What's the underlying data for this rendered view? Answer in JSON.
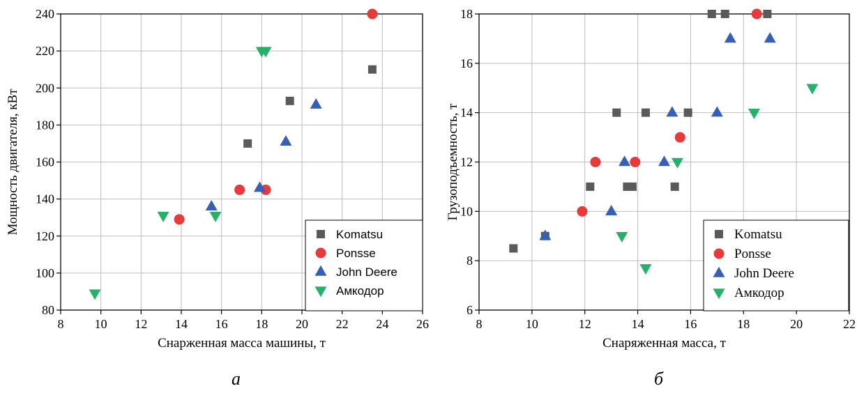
{
  "colors": {
    "komatsu": "#5a5a5a",
    "ponsse": "#e8393b",
    "john_deere": "#3560b5",
    "amkodor": "#27b06a",
    "grid": "#bdbdbd"
  },
  "panel_labels": [
    "а",
    "б"
  ],
  "chart_data": [
    {
      "type": "scatter",
      "xlabel": "Снарженная масса машины, т",
      "ylabel": "Мощность двигателя, кВт",
      "xlim": [
        8,
        26
      ],
      "ylim": [
        80,
        240
      ],
      "xticks": [
        8,
        10,
        12,
        14,
        16,
        18,
        20,
        22,
        24,
        26
      ],
      "yticks": [
        80,
        100,
        120,
        140,
        160,
        180,
        200,
        220,
        240
      ],
      "grid": true,
      "legend_position": "bottom-right",
      "series": [
        {
          "name": "Komatsu",
          "marker": "square",
          "color": "#5a5a5a",
          "points": [
            [
              17.3,
              170
            ],
            [
              19.4,
              193
            ],
            [
              23.5,
              210
            ]
          ]
        },
        {
          "name": "Ponsse",
          "marker": "circle",
          "color": "#e8393b",
          "points": [
            [
              13.9,
              129
            ],
            [
              16.9,
              145
            ],
            [
              18.2,
              145
            ],
            [
              23.5,
              240
            ]
          ]
        },
        {
          "name": "John Deere",
          "marker": "triangle-up",
          "color": "#3560b5",
          "points": [
            [
              15.5,
              136
            ],
            [
              17.9,
              146
            ],
            [
              19.2,
              171
            ],
            [
              20.7,
              191
            ]
          ]
        },
        {
          "name": "Амкодор",
          "marker": "triangle-down",
          "color": "#27b06a",
          "points": [
            [
              9.7,
              89
            ],
            [
              13.1,
              131
            ],
            [
              15.7,
              131
            ],
            [
              18.0,
              220
            ],
            [
              18.2,
              220
            ]
          ]
        }
      ]
    },
    {
      "type": "scatter",
      "xlabel": "Снаряженная масса, т",
      "ylabel": "Грузоподъемность, т",
      "xlim": [
        8,
        22
      ],
      "ylim": [
        6,
        18
      ],
      "xticks": [
        8,
        10,
        12,
        14,
        16,
        18,
        20,
        22
      ],
      "yticks": [
        6,
        8,
        10,
        12,
        14,
        16,
        18
      ],
      "grid": true,
      "legend_position": "bottom-right",
      "series": [
        {
          "name": "Komatsu",
          "marker": "square",
          "color": "#5a5a5a",
          "points": [
            [
              9.3,
              8.5
            ],
            [
              10.5,
              9
            ],
            [
              12.2,
              11
            ],
            [
              13.2,
              14
            ],
            [
              13.6,
              11
            ],
            [
              13.8,
              11
            ],
            [
              14.3,
              14
            ],
            [
              15.4,
              11
            ],
            [
              15.9,
              14
            ],
            [
              16.8,
              18
            ],
            [
              17.3,
              18
            ],
            [
              18.9,
              18
            ]
          ]
        },
        {
          "name": "Ponsse",
          "marker": "circle",
          "color": "#e8393b",
          "points": [
            [
              11.9,
              10
            ],
            [
              12.4,
              12
            ],
            [
              13.9,
              12
            ],
            [
              15.6,
              13
            ],
            [
              18.5,
              18
            ]
          ]
        },
        {
          "name": "John Deere",
          "marker": "triangle-up",
          "color": "#3560b5",
          "points": [
            [
              10.5,
              9
            ],
            [
              13.0,
              10
            ],
            [
              13.5,
              12
            ],
            [
              15.0,
              12
            ],
            [
              15.3,
              14
            ],
            [
              17.0,
              14
            ],
            [
              17.5,
              17
            ],
            [
              19.0,
              17
            ]
          ]
        },
        {
          "name": "Амкодор",
          "marker": "triangle-down",
          "color": "#27b06a",
          "points": [
            [
              13.4,
              9
            ],
            [
              14.3,
              7.7
            ],
            [
              15.5,
              12
            ],
            [
              18.4,
              14
            ],
            [
              20.6,
              15
            ]
          ]
        }
      ]
    }
  ]
}
